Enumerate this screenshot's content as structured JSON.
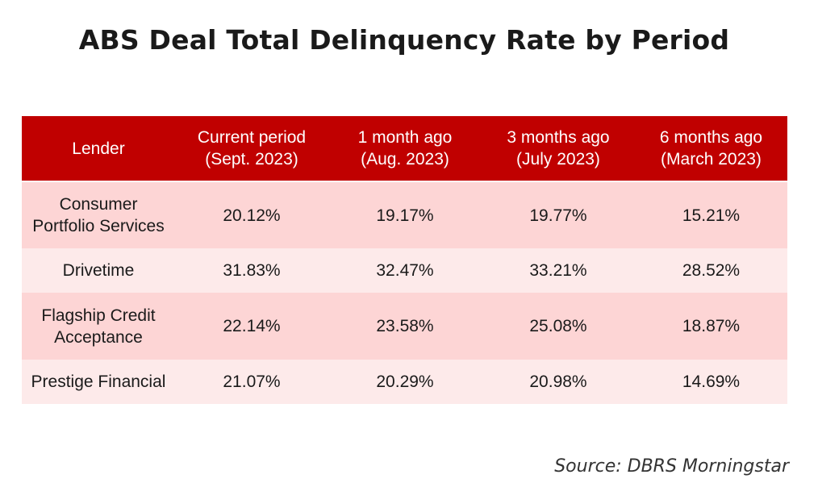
{
  "title": "ABS Deal Total Delinquency Rate by Period",
  "source": "Source: DBRS Morningstar",
  "colors": {
    "header_bg": "#c00000",
    "row_odd": "#fdd5d5",
    "row_even": "#fdeaea"
  },
  "chart_data": {
    "type": "table",
    "title": "ABS Deal Total Delinquency Rate by Period",
    "columns": [
      {
        "line1": "Lender",
        "line2": ""
      },
      {
        "line1": "Current period",
        "line2": "(Sept. 2023)"
      },
      {
        "line1": "1 month ago",
        "line2": "(Aug. 2023)"
      },
      {
        "line1": "3 months ago",
        "line2": "(July 2023)"
      },
      {
        "line1": "6 months ago",
        "line2": "(March 2023)"
      }
    ],
    "rows": [
      {
        "lender_line1": "Consumer",
        "lender_line2": "Portfolio Services",
        "values": [
          "20.12%",
          "19.17%",
          "19.77%",
          "15.21%"
        ]
      },
      {
        "lender_line1": "Drivetime",
        "lender_line2": "",
        "values": [
          "31.83%",
          "32.47%",
          "33.21%",
          "28.52%"
        ]
      },
      {
        "lender_line1": "Flagship Credit",
        "lender_line2": "Acceptance",
        "values": [
          "22.14%",
          "23.58%",
          "25.08%",
          "18.87%"
        ]
      },
      {
        "lender_line1": "Prestige Financial",
        "lender_line2": "",
        "values": [
          "21.07%",
          "20.29%",
          "20.98%",
          "14.69%"
        ]
      }
    ],
    "source": "Source: DBRS Morningstar"
  }
}
